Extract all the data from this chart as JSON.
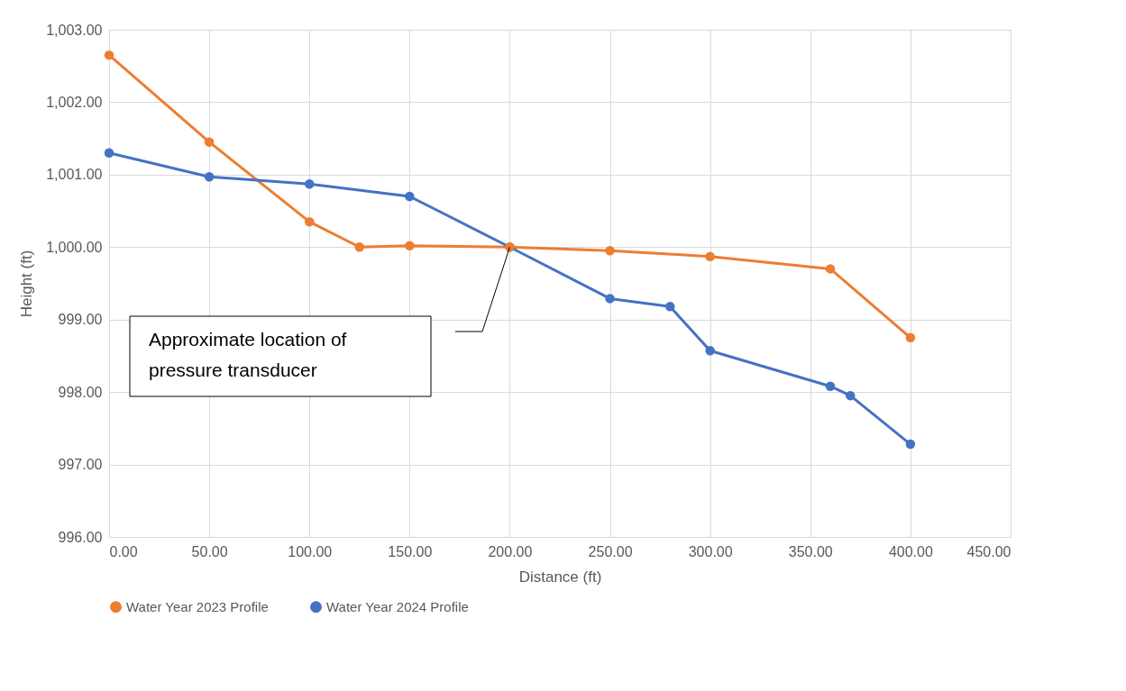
{
  "chart_data": {
    "type": "line",
    "xlabel": "Distance (ft)",
    "ylabel": "Height (ft)",
    "xlim": [
      0,
      450
    ],
    "xticks": [
      {
        "value": 0,
        "label": "0.00"
      },
      {
        "value": 50,
        "label": "50.00"
      },
      {
        "value": 100,
        "label": "100.00"
      },
      {
        "value": 150,
        "label": "150.00"
      },
      {
        "value": 200,
        "label": "200.00"
      },
      {
        "value": 250,
        "label": "250.00"
      },
      {
        "value": 300,
        "label": "300.00"
      },
      {
        "value": 350,
        "label": "350.00"
      },
      {
        "value": 400,
        "label": "400.00"
      },
      {
        "value": 450,
        "label": "450.00"
      }
    ],
    "ylim": [
      996,
      1003
    ],
    "yticks": [
      {
        "value": 996,
        "label": "996.00"
      },
      {
        "value": 997,
        "label": "997.00"
      },
      {
        "value": 998,
        "label": "998.00"
      },
      {
        "value": 999,
        "label": "999.00"
      },
      {
        "value": 1000,
        "label": "1,000.00"
      },
      {
        "value": 1001,
        "label": "1,001.00"
      },
      {
        "value": 1002,
        "label": "1,002.00"
      },
      {
        "value": 1003,
        "label": "1,003.00"
      }
    ],
    "grid": true,
    "legend": "bottom",
    "marker": "circle",
    "line_style": "solid",
    "series": [
      {
        "name": "Water Year 2023 Profile",
        "color": "#ed7d31",
        "x": [
          0,
          50,
          100,
          125,
          150,
          200,
          250,
          300,
          360,
          400
        ],
        "values": [
          1002.65,
          1001.45,
          1000.35,
          1000.0,
          1000.02,
          1000.0,
          999.95,
          999.87,
          999.7,
          998.75
        ]
      },
      {
        "name": "Water Year 2024 Profile",
        "color": "#4472c4",
        "x": [
          0,
          50,
          100,
          150,
          200,
          250,
          280,
          300,
          360,
          370,
          400
        ],
        "values": [
          1001.3,
          1000.97,
          1000.87,
          1000.7,
          1000.0,
          999.29,
          999.18,
          998.57,
          998.08,
          997.95,
          997.28
        ]
      }
    ],
    "annotations": [
      "Approximate location of pressure transducer"
    ]
  }
}
